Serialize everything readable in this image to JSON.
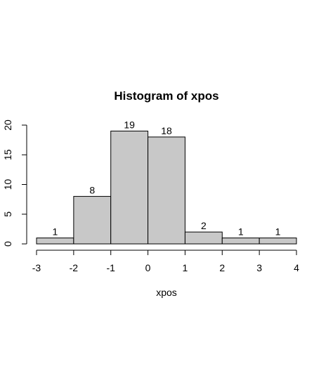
{
  "chart_data": {
    "type": "bar",
    "title": "Histogram of xpos",
    "xlabel": "xpos",
    "ylabel": "",
    "bin_edges": [
      -3,
      -2,
      -1,
      0,
      1,
      2,
      3,
      4
    ],
    "values": [
      1,
      8,
      19,
      18,
      2,
      1,
      1
    ],
    "x_ticks": [
      -3,
      -2,
      -1,
      0,
      1,
      2,
      3,
      4
    ],
    "y_ticks": [
      0,
      5,
      10,
      15,
      20
    ],
    "xlim": [
      -3,
      4
    ],
    "ylim": [
      0,
      20
    ],
    "grid": false,
    "legend": "none",
    "colors": {
      "bar_fill": "#c8c8c8",
      "bar_stroke": "#000000"
    }
  }
}
